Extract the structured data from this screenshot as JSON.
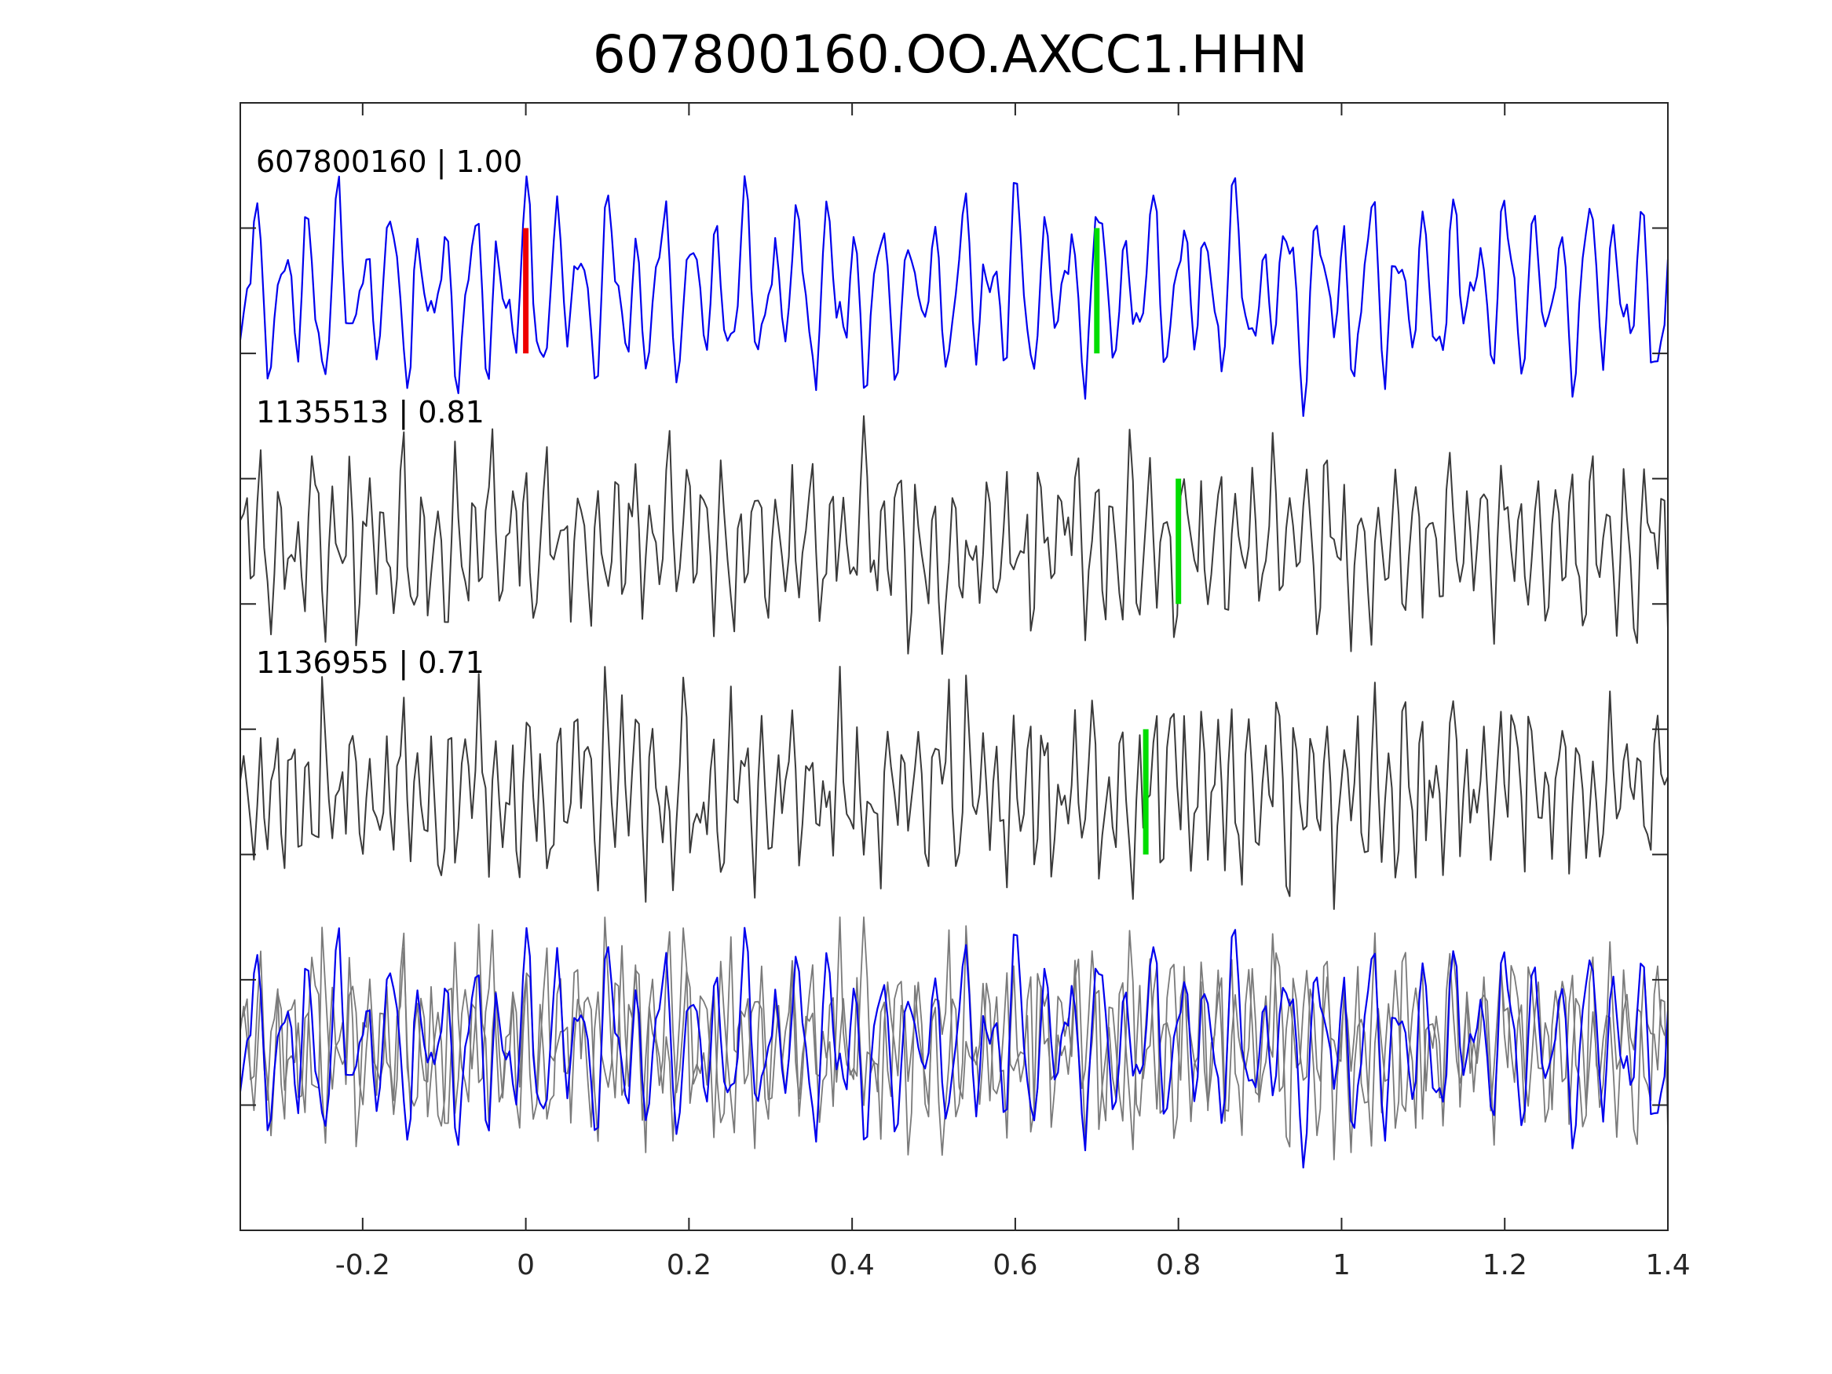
{
  "chart_data": {
    "type": "line",
    "title": "607800160.OO.AXCC1.HHN",
    "xlabel": "",
    "ylabel": "",
    "xlim": [
      -0.35,
      1.4
    ],
    "x_ticks": [
      {
        "value": -0.2,
        "label": "-0.2"
      },
      {
        "value": 0,
        "label": "0"
      },
      {
        "value": 0.2,
        "label": "0.2"
      },
      {
        "value": 0.4,
        "label": "0.4"
      },
      {
        "value": 0.6,
        "label": "0.6"
      },
      {
        "value": 0.8,
        "label": "0.8"
      },
      {
        "value": 1,
        "label": "1"
      },
      {
        "value": 1.2,
        "label": "1.2"
      },
      {
        "value": 1.4,
        "label": "1.4"
      }
    ],
    "y_tick_count": 9,
    "grid": false,
    "traces": [
      {
        "label": "607800160 | 1.00",
        "id": "607800160",
        "cc": 1.0,
        "color": "#0000ee",
        "seed": 11,
        "freq": 30,
        "noise": 0.35,
        "lw": 2.2
      },
      {
        "label": "1135513 | 0.81",
        "id": "1135513",
        "cc": 0.81,
        "color": "#3a3a3a",
        "seed": 23,
        "freq": 46,
        "noise": 0.6,
        "lw": 2
      },
      {
        "label": "1136955 | 0.71",
        "id": "1136955",
        "cc": 0.71,
        "color": "#3a3a3a",
        "seed": 37,
        "freq": 52,
        "noise": 0.7,
        "lw": 2
      }
    ],
    "overlay": {
      "series": [
        "607800160",
        "1135513",
        "1136955"
      ],
      "colors": [
        "#0000ee",
        "#7a7a7a",
        "#7a7a7a"
      ]
    },
    "picks": [
      {
        "trace": 0,
        "x": 0.0,
        "color": "#ee0000"
      },
      {
        "trace": 0,
        "x": 0.7,
        "color": "#00dd00"
      },
      {
        "trace": 1,
        "x": 0.8,
        "color": "#00dd00"
      },
      {
        "trace": 2,
        "x": 0.76,
        "color": "#00dd00"
      }
    ]
  }
}
